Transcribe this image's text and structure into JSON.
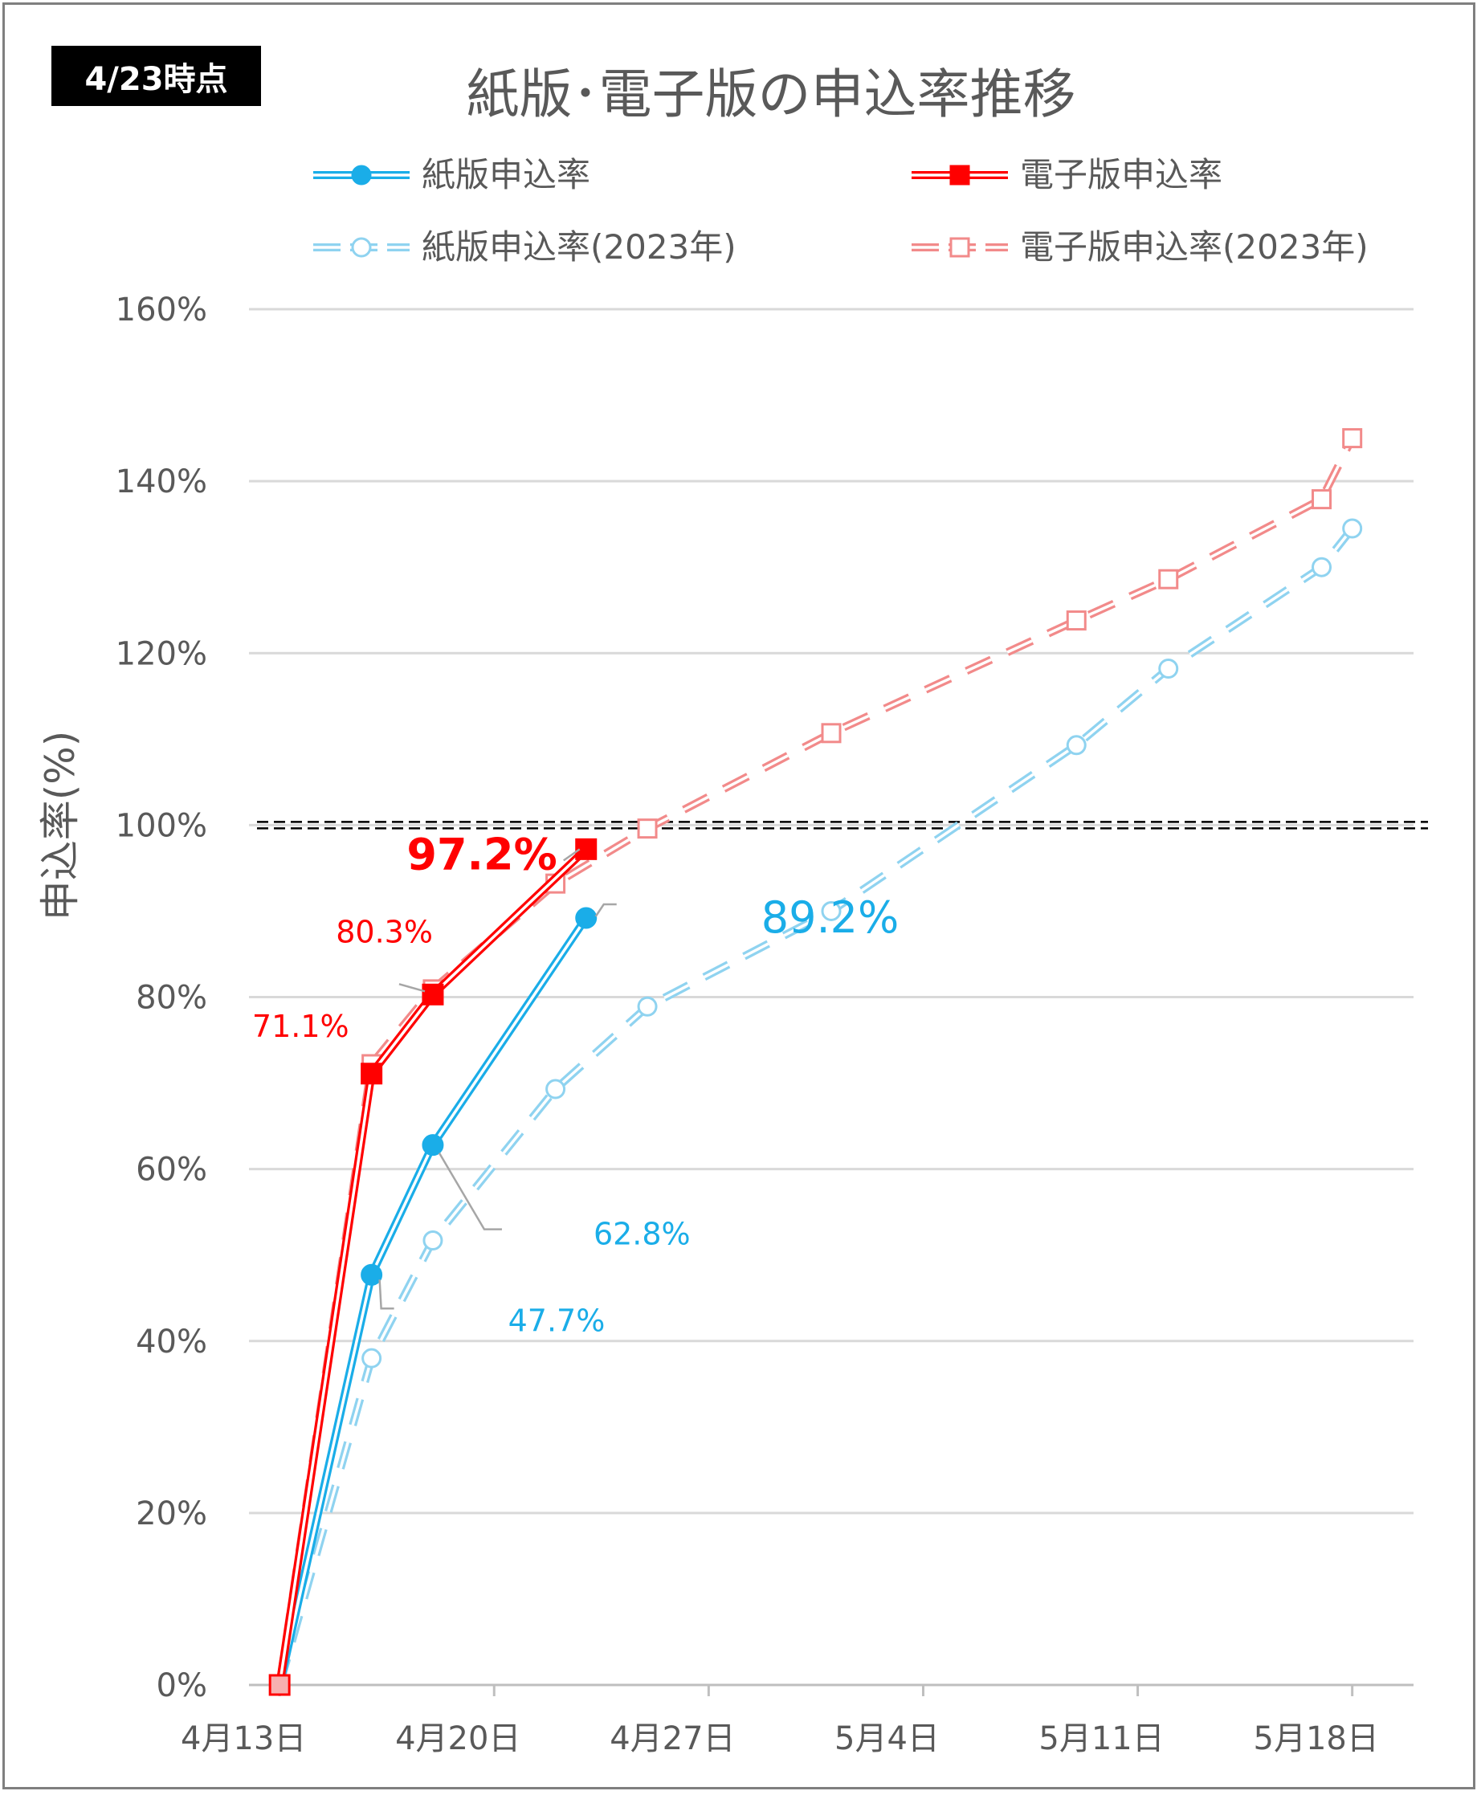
{
  "badge": "4/23時点",
  "chart_data": {
    "type": "line",
    "title": "紙版･電子版の申込率推移",
    "xlabel": "",
    "ylabel": "申込率(%)",
    "ylim": [
      0,
      160
    ],
    "yticks": [
      0,
      20,
      40,
      60,
      80,
      100,
      120,
      140,
      160
    ],
    "ytick_labels": [
      "0%",
      "20%",
      "40%",
      "60%",
      "80%",
      "100%",
      "120%",
      "140%",
      "160%"
    ],
    "xlim": [
      "2024-04-12",
      "2024-05-20"
    ],
    "xticks": [
      "2024-04-13",
      "2024-04-20",
      "2024-04-27",
      "2024-05-04",
      "2024-05-11",
      "2024-05-18"
    ],
    "xtick_labels": [
      "4月13日",
      "4月20日",
      "4月27日",
      "5月4日",
      "5月11日",
      "5月18日"
    ],
    "grid": true,
    "legend_position": "top",
    "reference_line": {
      "y": 100,
      "style": "double-dashed",
      "color": "#000000"
    },
    "series": [
      {
        "name": "紙版申込率",
        "color": "#1aade8",
        "style": "solid-double",
        "marker": "circle-filled",
        "x": [
          "2024-04-13",
          "2024-04-16",
          "2024-04-18",
          "2024-04-23"
        ],
        "y": [
          0,
          47.7,
          62.8,
          89.2
        ],
        "labels": [
          null,
          "47.7%",
          "62.8%",
          "89.2%"
        ]
      },
      {
        "name": "電子版申込率",
        "color": "#ff0000",
        "style": "solid-double",
        "marker": "square-filled",
        "x": [
          "2024-04-13",
          "2024-04-16",
          "2024-04-18",
          "2024-04-23"
        ],
        "y": [
          0,
          71.1,
          80.3,
          97.2
        ],
        "labels": [
          null,
          "71.1%",
          "80.3%",
          "97.2%"
        ]
      },
      {
        "name": "紙版申込率(2023年)",
        "color": "#8fd3f0",
        "style": "dashed-double",
        "marker": "circle-open",
        "x": [
          "2024-04-13",
          "2024-04-16",
          "2024-04-18",
          "2024-04-22",
          "2024-04-25",
          "2024-05-01",
          "2024-05-09",
          "2024-05-12",
          "2024-05-17",
          "2024-05-18"
        ],
        "y": [
          0,
          38,
          51.7,
          69.3,
          78.9,
          90,
          109.3,
          118.2,
          130,
          134.5
        ]
      },
      {
        "name": "電子版申込率(2023年)",
        "color": "#f28a8a",
        "style": "dashed-double",
        "marker": "square-open",
        "x": [
          "2024-04-13",
          "2024-04-16",
          "2024-04-18",
          "2024-04-22",
          "2024-04-25",
          "2024-05-01",
          "2024-05-09",
          "2024-05-12",
          "2024-05-17",
          "2024-05-18"
        ],
        "y": [
          0,
          72.2,
          80.9,
          93.2,
          99.6,
          110.7,
          123.8,
          128.6,
          137.9,
          145
        ]
      }
    ]
  }
}
